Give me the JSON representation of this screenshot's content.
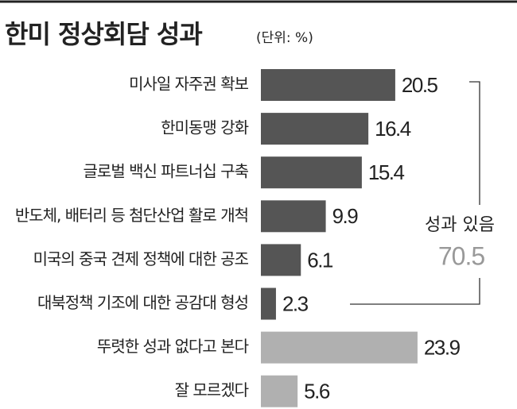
{
  "chart_data": {
    "type": "bar",
    "orientation": "horizontal",
    "title": "한미 정상회담 성과",
    "subtitle": "(단위: %)",
    "categories": [
      "미사일 자주권 확보",
      "한미동맹 강화",
      "글로벌 백신 파트너십 구축",
      "반도체, 배터리 등 첨단산업 활로 개척",
      "미국의 중국 견제 정책에 대한 공조",
      "대북정책 기조에 대한 공감대 형성",
      "뚜렷한 성과 없다고 본다",
      "잘 모르겠다"
    ],
    "values": [
      20.5,
      16.4,
      15.4,
      9.9,
      6.1,
      2.3,
      23.9,
      5.6
    ],
    "colors": [
      "#555555",
      "#555555",
      "#555555",
      "#555555",
      "#555555",
      "#555555",
      "#b0b0b0",
      "#b0b0b0"
    ],
    "annotation": {
      "label": "성과 있음",
      "value": 70.5
    }
  }
}
